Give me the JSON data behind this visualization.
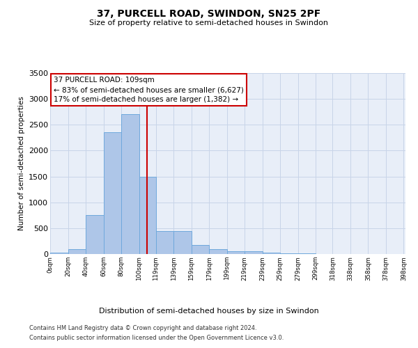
{
  "title": "37, PURCELL ROAD, SWINDON, SN25 2PF",
  "subtitle": "Size of property relative to semi-detached houses in Swindon",
  "xlabel": "Distribution of semi-detached houses by size in Swindon",
  "ylabel": "Number of semi-detached properties",
  "footnote1": "Contains HM Land Registry data © Crown copyright and database right 2024.",
  "footnote2": "Contains public sector information licensed under the Open Government Licence v3.0.",
  "annotation_title": "37 PURCELL ROAD: 109sqm",
  "annotation_line1": "← 83% of semi-detached houses are smaller (6,627)",
  "annotation_line2": "17% of semi-detached houses are larger (1,382) →",
  "property_size": 109,
  "bar_left_edges": [
    0,
    20,
    40,
    60,
    80,
    100,
    119,
    139,
    159,
    179,
    199,
    219,
    239,
    259,
    279,
    299,
    318,
    338,
    358,
    378
  ],
  "bar_heights": [
    30,
    100,
    750,
    2350,
    2700,
    1500,
    450,
    450,
    175,
    90,
    60,
    50,
    30,
    15,
    8,
    4,
    3,
    2,
    1,
    1
  ],
  "bar_widths": [
    20,
    20,
    20,
    20,
    20,
    19,
    20,
    20,
    20,
    20,
    20,
    20,
    20,
    20,
    20,
    19,
    20,
    20,
    20,
    20
  ],
  "tick_labels": [
    "0sqm",
    "20sqm",
    "40sqm",
    "60sqm",
    "80sqm",
    "100sqm",
    "119sqm",
    "139sqm",
    "159sqm",
    "179sqm",
    "199sqm",
    "219sqm",
    "239sqm",
    "259sqm",
    "279sqm",
    "299sqm",
    "318sqm",
    "338sqm",
    "358sqm",
    "378sqm",
    "398sqm"
  ],
  "tick_positions": [
    0,
    20,
    40,
    60,
    80,
    100,
    119,
    139,
    159,
    179,
    199,
    219,
    239,
    259,
    279,
    299,
    318,
    338,
    358,
    378,
    398
  ],
  "bar_color": "#aec6e8",
  "bar_edge_color": "#6fa8dc",
  "vline_color": "#cc0000",
  "annotation_box_color": "#ffffff",
  "annotation_box_edge": "#cc0000",
  "grid_color": "#c8d4e8",
  "background_color": "#e8eef8",
  "ylim": [
    0,
    3500
  ],
  "xlim": [
    0,
    400
  ],
  "yticks": [
    0,
    500,
    1000,
    1500,
    2000,
    2500,
    3000,
    3500
  ]
}
